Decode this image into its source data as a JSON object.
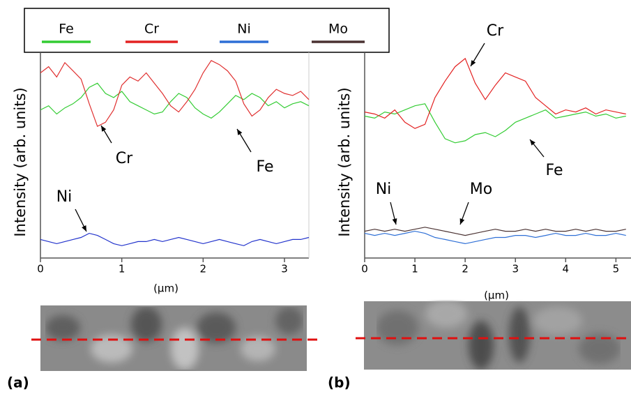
{
  "chart_data": [
    {
      "type": "line",
      "panel_label": "(a)",
      "ylabel": "Intensity (arb. units)",
      "xlabel": "(µm)",
      "xlim": [
        0,
        3.3
      ],
      "xticks": [
        0,
        1,
        2,
        3
      ],
      "ylim": [
        0,
        100
      ],
      "x": [
        0,
        0.1,
        0.2,
        0.3,
        0.4,
        0.5,
        0.6,
        0.7,
        0.8,
        0.9,
        1,
        1.1,
        1.2,
        1.3,
        1.4,
        1.5,
        1.6,
        1.7,
        1.8,
        1.9,
        2,
        2.1,
        2.2,
        2.3,
        2.4,
        2.5,
        2.6,
        2.7,
        2.8,
        2.9,
        3,
        3.1,
        3.2,
        3.3
      ],
      "series": [
        {
          "name": "Fe",
          "color": "#33cc33",
          "values": [
            72,
            74,
            70,
            73,
            75,
            78,
            83,
            85,
            80,
            78,
            81,
            76,
            74,
            72,
            70,
            71,
            76,
            80,
            78,
            73,
            70,
            68,
            71,
            75,
            79,
            77,
            80,
            78,
            74,
            76,
            73,
            75,
            76,
            74
          ]
        },
        {
          "name": "Cr",
          "color": "#e03030",
          "values": [
            90,
            93,
            88,
            95,
            91,
            87,
            75,
            64,
            66,
            72,
            84,
            88,
            86,
            90,
            85,
            80,
            74,
            71,
            76,
            82,
            90,
            96,
            94,
            91,
            86,
            75,
            69,
            72,
            78,
            82,
            80,
            79,
            81,
            77
          ]
        },
        {
          "name": "Ni",
          "color": "#2233cc",
          "values": [
            9,
            8,
            7,
            8,
            9,
            10,
            12,
            11,
            9,
            7,
            6,
            7,
            8,
            8,
            9,
            8,
            9,
            10,
            9,
            8,
            7,
            8,
            9,
            8,
            7,
            6,
            8,
            9,
            8,
            7,
            8,
            9,
            9,
            10
          ]
        }
      ],
      "annotations": [
        "Cr",
        "Fe",
        "Ni"
      ]
    },
    {
      "type": "line",
      "panel_label": "(b)",
      "ylabel": "Intensity (arb. units)",
      "xlabel": "(µm)",
      "xlim": [
        0,
        5.3
      ],
      "xticks": [
        0,
        1,
        2,
        3,
        4,
        5
      ],
      "ylim": [
        0,
        100
      ],
      "x": [
        0,
        0.2,
        0.4,
        0.6,
        0.8,
        1,
        1.2,
        1.4,
        1.6,
        1.8,
        2,
        2.2,
        2.4,
        2.6,
        2.8,
        3,
        3.2,
        3.4,
        3.6,
        3.8,
        4,
        4.2,
        4.4,
        4.6,
        4.8,
        5,
        5.2
      ],
      "series": [
        {
          "name": "Fe",
          "color": "#33cc33",
          "values": [
            69,
            68,
            71,
            70,
            72,
            74,
            75,
            66,
            58,
            56,
            57,
            60,
            61,
            59,
            62,
            66,
            68,
            70,
            72,
            68,
            69,
            70,
            71,
            69,
            70,
            68,
            69
          ]
        },
        {
          "name": "Cr",
          "color": "#e32222",
          "values": [
            71,
            70,
            68,
            72,
            66,
            63,
            65,
            78,
            86,
            93,
            97,
            85,
            77,
            84,
            90,
            88,
            86,
            78,
            74,
            70,
            72,
            71,
            73,
            70,
            72,
            71,
            70
          ]
        },
        {
          "name": "Ni",
          "color": "#2e6fd6",
          "values": [
            12,
            11,
            12,
            11,
            12,
            13,
            12,
            10,
            9,
            8,
            7,
            8,
            9,
            10,
            10,
            11,
            11,
            10,
            11,
            12,
            11,
            11,
            12,
            11,
            11,
            12,
            11
          ]
        },
        {
          "name": "Mo",
          "color": "#4a3232",
          "values": [
            13,
            14,
            13,
            14,
            13,
            14,
            15,
            14,
            13,
            12,
            11,
            12,
            13,
            14,
            13,
            13,
            14,
            13,
            14,
            13,
            13,
            14,
            13,
            14,
            13,
            13,
            14
          ]
        }
      ],
      "annotations": [
        "Cr",
        "Fe",
        "Ni",
        "Mo"
      ]
    }
  ]
}
